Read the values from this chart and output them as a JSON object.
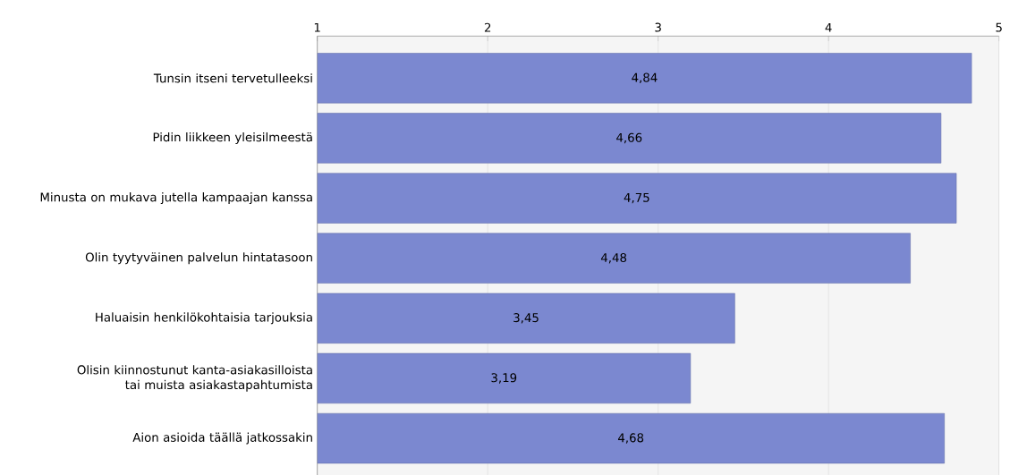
{
  "chart_data": {
    "type": "bar",
    "orientation": "horizontal",
    "categories": [
      "Tunsin itseni tervetulleeksi",
      "Pidin liikkeen yleisilmeestä",
      "Minusta on mukava jutella kampaajan kanssa",
      "Olin tyytyväinen palvelun hintatasoon",
      "Haluaisin henkilökohtaisia tarjouksia",
      "Olisin kiinnostunut kanta-asiakasilloista tai muista asiakastapahtumista",
      "Aion asioida täällä jatkossakin"
    ],
    "values": [
      4.84,
      4.66,
      4.75,
      4.48,
      3.45,
      3.19,
      4.68
    ],
    "value_labels": [
      "4,84",
      "4,66",
      "4,75",
      "4,48",
      "3,45",
      "3,19",
      "4,68"
    ],
    "color": "#7b88d0",
    "xlim": [
      1,
      5
    ],
    "xticks": [
      1,
      2,
      3,
      4,
      5
    ],
    "grid": "x"
  }
}
